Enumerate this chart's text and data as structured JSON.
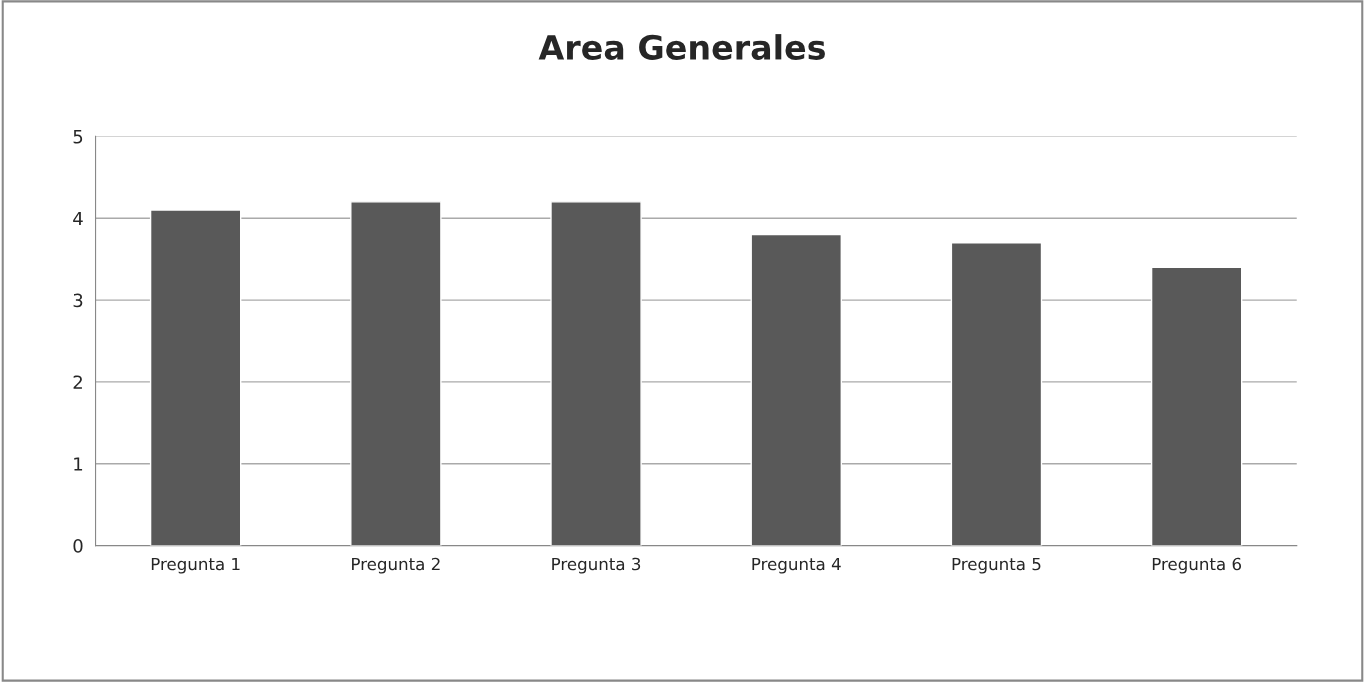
{
  "chart_data": {
    "type": "bar",
    "title": "Area Generales",
    "categories": [
      "Pregunta 1",
      "Pregunta 2",
      "Pregunta 3",
      "Pregunta 4",
      "Pregunta 5",
      "Pregunta 6"
    ],
    "values": [
      4.1,
      4.2,
      4.2,
      3.8,
      3.7,
      3.4
    ],
    "color": "#595959",
    "ylim": [
      0,
      5
    ],
    "yticks": [
      0,
      1,
      2,
      3,
      4,
      5
    ],
    "grid": "y"
  }
}
